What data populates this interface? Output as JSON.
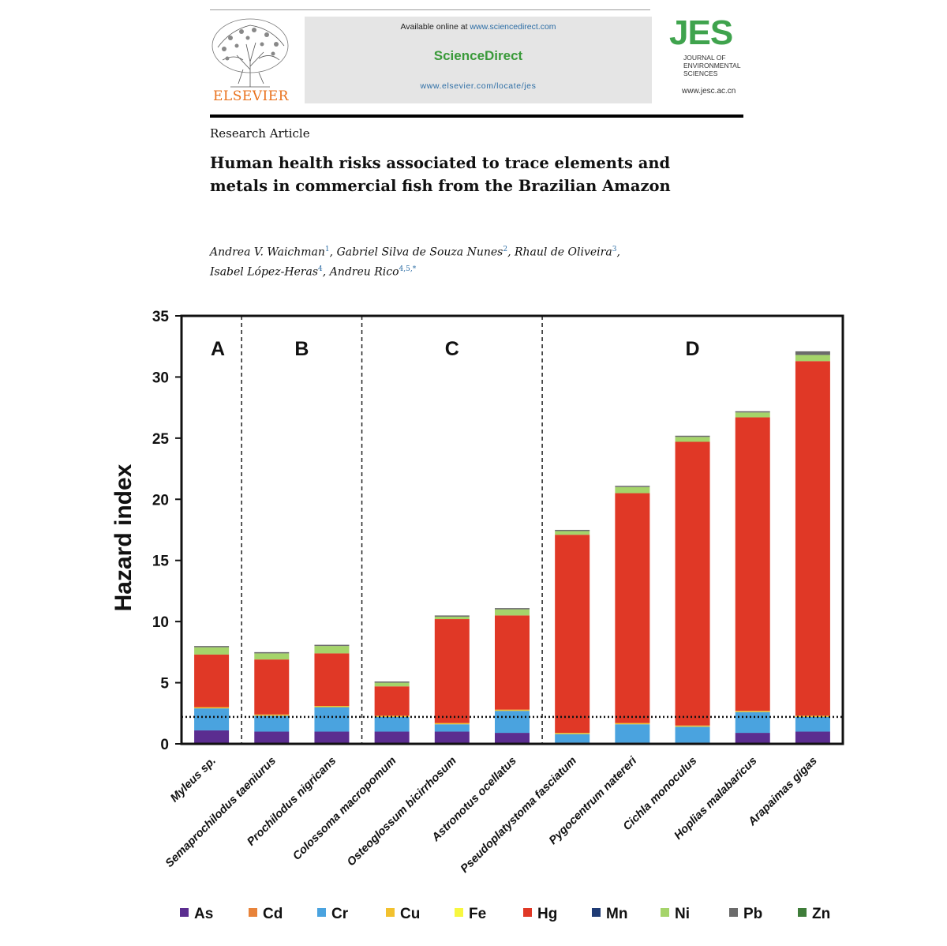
{
  "header": {
    "publisher": "ELSEVIER",
    "available_online_prefix": "Available online at",
    "available_online_link": "www.sciencedirect.com",
    "platform": "ScienceDirect",
    "platform_url": "www.elsevier.com/locate/jes",
    "journal_abbrev": "JES",
    "journal_name_lines": [
      "JOURNAL OF",
      "ENVIRONMENTAL",
      "SCIENCES"
    ],
    "journal_url": "www.jesc.ac.cn"
  },
  "article": {
    "type": "Research Article",
    "title": "Human health risks associated to trace elements and metals in commercial fish from the Brazilian Amazon",
    "authors": [
      {
        "name": "Andrea V. Waichman",
        "aff": "1"
      },
      {
        "name": "Gabriel Silva de Souza Nunes",
        "aff": "2"
      },
      {
        "name": "Rhaul de Oliveira",
        "aff": "3"
      },
      {
        "name": "Isabel López-Heras",
        "aff": "4"
      },
      {
        "name": "Andreu Rico",
        "aff": "4,5,*"
      }
    ]
  },
  "chart_data": {
    "type": "bar",
    "stacked": true,
    "ylabel": "Hazard index",
    "xlabel": "",
    "ylim": [
      0,
      35
    ],
    "yticks": [
      0,
      5,
      10,
      15,
      20,
      25,
      30,
      35
    ],
    "reference_line": 2.2,
    "panels": [
      {
        "label": "A",
        "categories": 1
      },
      {
        "label": "B",
        "categories": 2
      },
      {
        "label": "C",
        "categories": 3
      },
      {
        "label": "D",
        "categories": 5
      }
    ],
    "categories": [
      "Myleus sp.",
      "Semaprochilodus taeniurus",
      "Prochilodus nigricans",
      "Colossoma macropomum",
      "Osteoglossum bicirrhosum",
      "Astronotus ocellatus",
      "Pseudoplatystoma fasciatum",
      "Pygocentrum natereri",
      "Cichla monoculus",
      "Hoplias malabaricus",
      "Arapaimas gigas"
    ],
    "legend_position": "bottom",
    "series": [
      {
        "name": "As",
        "color": "#5b2d90",
        "values": [
          1.1,
          1.0,
          1.0,
          1.0,
          1.0,
          0.9,
          0.1,
          0.1,
          0.1,
          0.9,
          1.0
        ]
      },
      {
        "name": "Cd",
        "color": "#e8833a",
        "values": [
          0.0,
          0.0,
          0.0,
          0.0,
          0.0,
          0.0,
          0.0,
          0.0,
          0.0,
          0.0,
          0.0
        ]
      },
      {
        "name": "Cr",
        "color": "#4aa3df",
        "values": [
          1.8,
          1.3,
          2.0,
          1.2,
          0.6,
          1.8,
          0.7,
          1.5,
          1.3,
          1.7,
          1.2
        ]
      },
      {
        "name": "Cu",
        "color": "#f2c12e",
        "values": [
          0.1,
          0.1,
          0.1,
          0.1,
          0.1,
          0.1,
          0.1,
          0.1,
          0.1,
          0.1,
          0.1
        ]
      },
      {
        "name": "Fe",
        "color": "#f7f740",
        "values": [
          0.0,
          0.0,
          0.0,
          0.0,
          0.0,
          0.0,
          0.0,
          0.0,
          0.0,
          0.0,
          0.0
        ]
      },
      {
        "name": "Hg",
        "color": "#e03826",
        "values": [
          4.3,
          4.5,
          4.3,
          2.4,
          8.5,
          7.7,
          16.2,
          18.8,
          23.2,
          24.0,
          29.0
        ]
      },
      {
        "name": "Mn",
        "color": "#1f3b75",
        "values": [
          0.0,
          0.0,
          0.0,
          0.0,
          0.0,
          0.0,
          0.0,
          0.0,
          0.0,
          0.0,
          0.0
        ]
      },
      {
        "name": "Ni",
        "color": "#a5d46a",
        "values": [
          0.6,
          0.5,
          0.6,
          0.3,
          0.2,
          0.5,
          0.3,
          0.5,
          0.4,
          0.4,
          0.5
        ]
      },
      {
        "name": "Pb",
        "color": "#6b6b6b",
        "values": [
          0.1,
          0.1,
          0.1,
          0.1,
          0.1,
          0.1,
          0.1,
          0.1,
          0.1,
          0.1,
          0.3
        ]
      },
      {
        "name": "Zn",
        "color": "#3f7d3a",
        "values": [
          0.0,
          0.0,
          0.0,
          0.0,
          0.0,
          0.0,
          0.0,
          0.0,
          0.0,
          0.0,
          0.0
        ]
      }
    ]
  }
}
